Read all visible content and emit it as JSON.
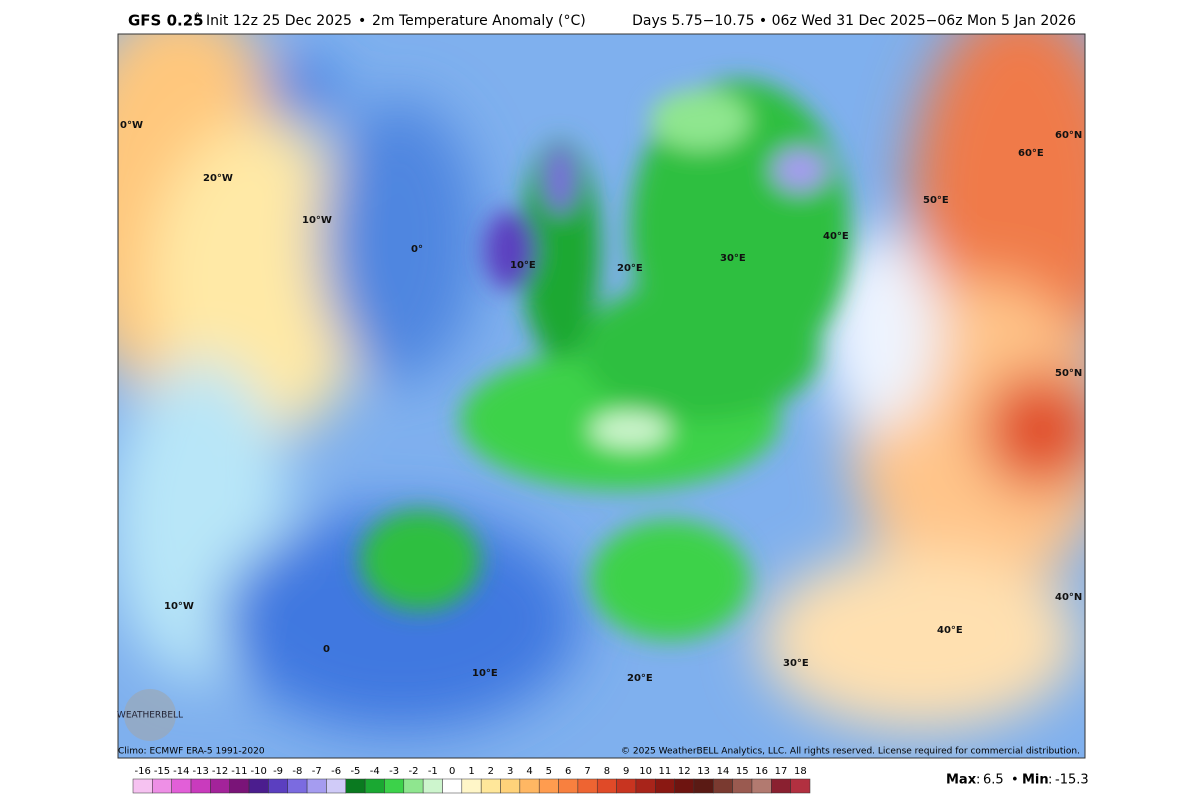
{
  "header": {
    "model": "GFS 0.25",
    "degree": "°",
    "init": "Init 12z 25 Dec 2025",
    "bullet": "•",
    "title": "2m Temperature Anomaly (°C)",
    "period": "Days 5.75−10.75 • 06z Wed 31 Dec 2025−06z Mon 5 Jan 2026"
  },
  "map": {
    "labels": [
      "0°W",
      "20°W",
      "10°W",
      "0°",
      "10°E",
      "20°E",
      "30°E",
      "40°E",
      "50°E",
      "60°E",
      "60°N",
      "50°N",
      "40°N",
      "10°W",
      "0",
      "10°E",
      "20°E",
      "30°E",
      "40°E"
    ]
  },
  "footer": {
    "climo": "Climo: ECMWF ERA-5 1991-2020",
    "copyright": "© 2025 WeatherBELL Analytics, LLC. All rights reserved. License required for commercial distribution.",
    "logo": "WEATHERBELL"
  },
  "colorbar": {
    "labels": [
      -16,
      -15,
      -14,
      -13,
      -12,
      -11,
      -10,
      -9,
      -8,
      -7,
      -6,
      -5,
      -4,
      -3,
      -2,
      -1,
      0,
      1,
      2,
      3,
      4,
      5,
      6,
      7,
      8,
      9,
      10,
      11,
      12,
      13,
      14,
      15,
      16,
      17,
      18
    ],
    "colors": [
      "#f6c2f1",
      "#ee8fe6",
      "#e25fd8",
      "#c93bbd",
      "#a3239a",
      "#7a1478",
      "#4b1d8e",
      "#5b3fc0",
      "#7b6be0",
      "#a59cf0",
      "#d0cbf8",
      "#0a7a20",
      "#1aa832",
      "#3cd24a",
      "#8fe68f",
      "#cdf5cd",
      "#ffffff",
      "#fff6c8",
      "#ffe79a",
      "#ffd27a",
      "#ffb763",
      "#ff9c4f",
      "#f8803f",
      "#ee6432",
      "#e04a28",
      "#c83420",
      "#a8241a",
      "#8a1812",
      "#6e1410",
      "#5a1a14",
      "#7a3a30",
      "#9a5a50",
      "#b27a70",
      "#8a2030",
      "#b23040"
    ]
  },
  "stats": {
    "max_label": "Max",
    "colon": ":",
    "max": 6.5,
    "separator": "•",
    "min_label": "Min",
    "min": -15.3
  }
}
